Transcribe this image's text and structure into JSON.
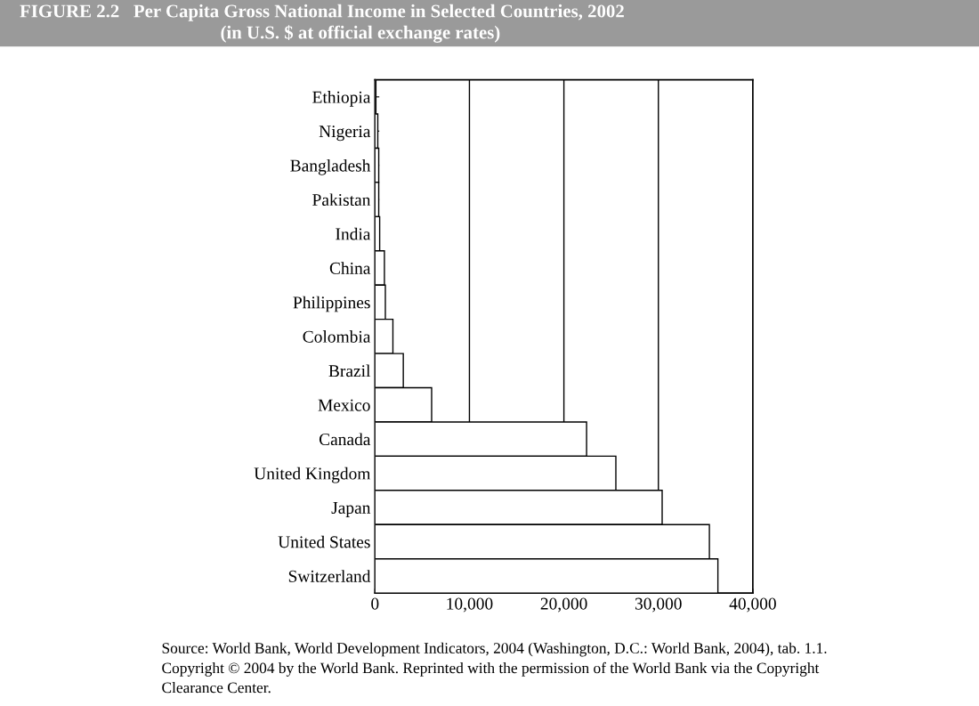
{
  "chart_data": {
    "type": "bar",
    "orientation": "horizontal",
    "title": "FIGURE 2.2   Per Capita Gross National Income in Selected Countries, 2002",
    "subtitle": "(in U.S. $ at official exchange rates)",
    "categories": [
      "Ethiopia",
      "Nigeria",
      "Bangladesh",
      "Pakistan",
      "India",
      "China",
      "Philippines",
      "Colombia",
      "Brazil",
      "Mexico",
      "Canada",
      "United Kingdom",
      "Japan",
      "United States",
      "Switzerland"
    ],
    "values": [
      100,
      300,
      400,
      400,
      500,
      1000,
      1100,
      1900,
      3000,
      6000,
      22400,
      25500,
      30400,
      35400,
      36300
    ],
    "color": "#ffffff",
    "xlim": [
      0,
      40000
    ],
    "xticks": [
      {
        "value": 0,
        "label": "0"
      },
      {
        "value": 10000,
        "label": "10,000"
      },
      {
        "value": 20000,
        "label": "20,000"
      },
      {
        "value": 30000,
        "label": "30,000"
      },
      {
        "value": 40000,
        "label": "40,000"
      }
    ],
    "grid": "x",
    "annotations": [
      "Source: World Bank, World Development Indicators, 2004 (Washington, D.C.: World Bank, 2004), tab. 1.1.",
      "Copyright © 2004 by the World Bank. Reprinted with the permission of the World Bank via the Copyright",
      "Clearance Center."
    ]
  }
}
